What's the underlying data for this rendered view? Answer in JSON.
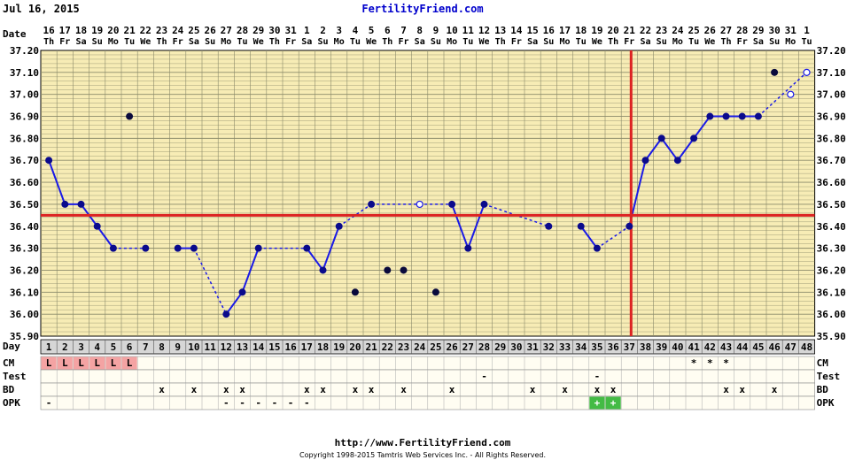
{
  "header": {
    "date": "Jul 16, 2015",
    "site": "FertilityFriend.com",
    "date_row_label": "Date",
    "day_row_label": "Day"
  },
  "footer": {
    "url": "http://www.FertilityFriend.com",
    "copyright": "Copyright 1998-2015 Tamtris Web Services Inc. - All Rights Reserved."
  },
  "colors": {
    "background": "#f7ecb5",
    "grid": "#8a8a6a",
    "line": "#1a1ae6",
    "point": "#0a0a8c",
    "coverline": "#dd2222",
    "menstrual": "#f4a3a3",
    "opk_positive": "#44bb44",
    "day_row": "#d6d6d6"
  },
  "chart_data": {
    "type": "line",
    "ylim": [
      35.9,
      37.2
    ],
    "yticks": [
      "35.90",
      "36.00",
      "36.10",
      "36.20",
      "36.30",
      "36.40",
      "36.50",
      "36.60",
      "36.70",
      "36.80",
      "36.90",
      "37.00",
      "37.10",
      "37.20"
    ],
    "dates": [
      "16",
      "17",
      "18",
      "19",
      "20",
      "21",
      "22",
      "23",
      "24",
      "25",
      "26",
      "27",
      "28",
      "29",
      "30",
      "31",
      "1",
      "2",
      "3",
      "4",
      "5",
      "6",
      "7",
      "8",
      "9",
      "10",
      "11",
      "12",
      "13",
      "14",
      "15",
      "16",
      "17",
      "18",
      "19",
      "20",
      "21",
      "22",
      "23",
      "24",
      "25",
      "26",
      "27",
      "28",
      "29",
      "30",
      "31",
      "1"
    ],
    "weekdays": [
      "Th",
      "Fr",
      "Sa",
      "Su",
      "Mo",
      "Tu",
      "We",
      "Th",
      "Fr",
      "Sa",
      "Su",
      "Mo",
      "Tu",
      "We",
      "Th",
      "Fr",
      "Sa",
      "Su",
      "Mo",
      "Tu",
      "We",
      "Th",
      "Fr",
      "Sa",
      "Su",
      "Mo",
      "Tu",
      "We",
      "Th",
      "Fr",
      "Sa",
      "Su",
      "Mo",
      "Tu",
      "We",
      "Th",
      "Fr",
      "Sa",
      "Su",
      "Mo",
      "Tu",
      "We",
      "Th",
      "Fr",
      "Sa",
      "Su",
      "Mo",
      "Tu"
    ],
    "days": [
      "1",
      "2",
      "3",
      "4",
      "5",
      "6",
      "7",
      "8",
      "9",
      "10",
      "11",
      "12",
      "13",
      "14",
      "15",
      "16",
      "17",
      "18",
      "19",
      "20",
      "21",
      "22",
      "23",
      "24",
      "25",
      "26",
      "27",
      "28",
      "29",
      "30",
      "31",
      "32",
      "33",
      "34",
      "35",
      "36",
      "37",
      "38",
      "39",
      "40",
      "41",
      "42",
      "43",
      "44",
      "45",
      "46",
      "47",
      "48"
    ],
    "temps": [
      36.7,
      36.5,
      36.5,
      36.4,
      36.3,
      null,
      36.3,
      null,
      36.3,
      36.3,
      null,
      36.0,
      36.1,
      36.3,
      null,
      null,
      36.3,
      36.2,
      36.4,
      null,
      36.5,
      null,
      null,
      null,
      null,
      36.5,
      36.3,
      36.5,
      null,
      null,
      null,
      36.4,
      null,
      36.4,
      36.3,
      null,
      36.4,
      36.7,
      36.8,
      36.7,
      36.8,
      36.9,
      36.9,
      36.9,
      36.9,
      null,
      null,
      null
    ],
    "open_points": [
      [
        24,
        36.5
      ],
      [
        47,
        37.0
      ],
      [
        48,
        37.1
      ]
    ],
    "discarded_points": [
      [
        6,
        36.9
      ],
      [
        20,
        36.1
      ],
      [
        22,
        36.2
      ],
      [
        23,
        36.2
      ],
      [
        25,
        36.1
      ],
      [
        46,
        37.1
      ]
    ],
    "dashed_segments": [
      [
        5,
        7
      ],
      [
        10,
        12
      ],
      [
        14,
        17
      ],
      [
        19,
        21
      ],
      [
        21,
        26
      ],
      [
        28,
        32
      ],
      [
        35,
        37
      ],
      [
        45,
        48
      ]
    ],
    "coverline": 36.45,
    "ovulation_day": 37,
    "rows": [
      {
        "label": "CM",
        "cells": {
          "1": "L",
          "2": "L",
          "3": "L",
          "4": "L",
          "5": "L",
          "6": "L",
          "41": "*",
          "42": "*",
          "43": "*"
        }
      },
      {
        "label": "Test",
        "cells": {
          "28": "-",
          "35": "-"
        }
      },
      {
        "label": "BD",
        "cells": {
          "8": "x",
          "10": "x",
          "12": "x",
          "13": "x",
          "17": "x",
          "18": "x",
          "20": "x",
          "21": "x",
          "23": "x",
          "26": "x",
          "31": "x",
          "33": "x",
          "35": "x",
          "36": "x",
          "43": "x",
          "44": "x",
          "46": "x"
        }
      },
      {
        "label": "OPK",
        "cells": {
          "1": "-",
          "12": "-",
          "13": "-",
          "14": "-",
          "15": "-",
          "16": "-",
          "17": "-",
          "35": "+",
          "36": "+"
        }
      }
    ]
  }
}
